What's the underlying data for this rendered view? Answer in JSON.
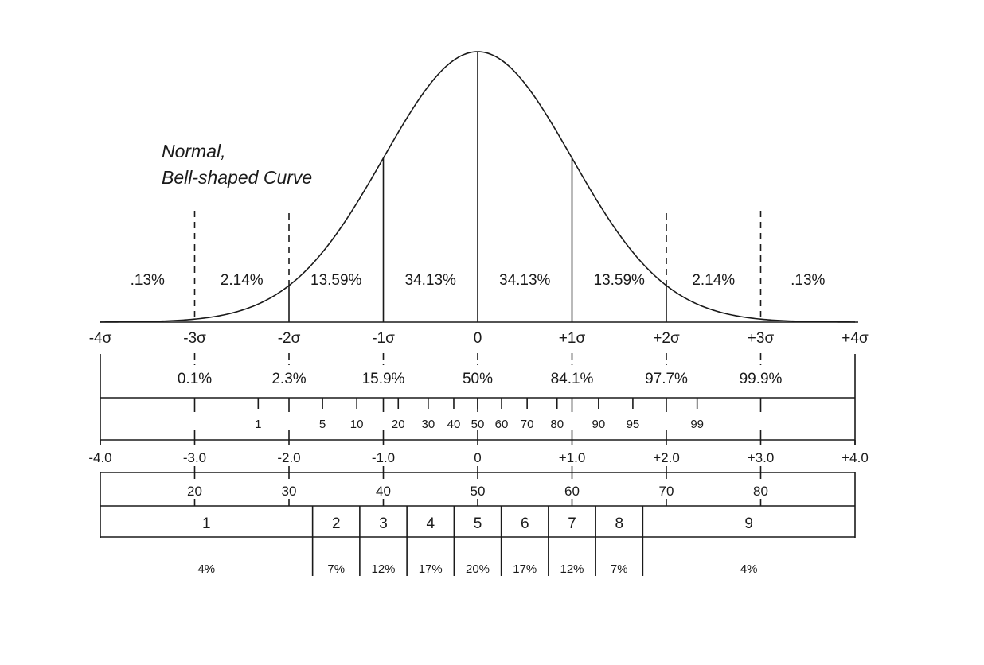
{
  "title_lines": [
    "Normal,",
    "Bell-shaped Curve"
  ],
  "colors": {
    "ink": "#1a1a1a",
    "background": "#ffffff"
  },
  "curve": {
    "band_percents": [
      ".13%",
      "2.14%",
      "13.59%",
      "34.13%",
      "34.13%",
      "13.59%",
      "2.14%",
      ".13%"
    ],
    "band_centers": [
      -3.5,
      -2.5,
      -1.5,
      -0.5,
      0.5,
      1.5,
      2.5,
      3.5
    ],
    "solid_lines": [
      -2,
      -1,
      0,
      1,
      2
    ],
    "dashed_lines": [
      -3,
      3
    ]
  },
  "sigma_axis": {
    "values": [
      -4,
      -3,
      -2,
      -1,
      0,
      1,
      2,
      3,
      4
    ],
    "labels": [
      "-4σ",
      "-3σ",
      "-2σ",
      "-1σ",
      "0",
      "+1σ",
      "+2σ",
      "+3σ",
      "+4σ"
    ]
  },
  "cumulative": {
    "at": [
      -3,
      -2,
      -1,
      0,
      1,
      2,
      3
    ],
    "labels": [
      "0.1%",
      "2.3%",
      "15.9%",
      "50%",
      "84.1%",
      "97.7%",
      "99.9%"
    ]
  },
  "percentiles": {
    "values": [
      1,
      5,
      10,
      20,
      30,
      40,
      50,
      60,
      70,
      80,
      90,
      95,
      99
    ],
    "labels": [
      "1",
      "5",
      "10",
      "20",
      "30",
      "40",
      "50",
      "60",
      "70",
      "80",
      "90",
      "95",
      "99"
    ]
  },
  "z_scores": {
    "values": [
      -4,
      -3,
      -2,
      -1,
      0,
      1,
      2,
      3,
      4
    ],
    "labels": [
      "-4.0",
      "-3.0",
      "-2.0",
      "-1.0",
      "0",
      "+1.0",
      "+2.0",
      "+3.0",
      "+4.0"
    ]
  },
  "t_scores": {
    "at": [
      -3,
      -2,
      -1,
      0,
      1,
      2,
      3
    ],
    "labels": [
      "20",
      "30",
      "40",
      "50",
      "60",
      "70",
      "80"
    ]
  },
  "stanines": {
    "boundaries": [
      -1.75,
      -1.25,
      -0.75,
      -0.25,
      0.25,
      0.75,
      1.25,
      1.75
    ],
    "labels": [
      "1",
      "2",
      "3",
      "4",
      "5",
      "6",
      "7",
      "8",
      "9"
    ],
    "percents": [
      "4%",
      "7%",
      "12%",
      "17%",
      "20%",
      "17%",
      "12%",
      "7%",
      "4%"
    ]
  }
}
